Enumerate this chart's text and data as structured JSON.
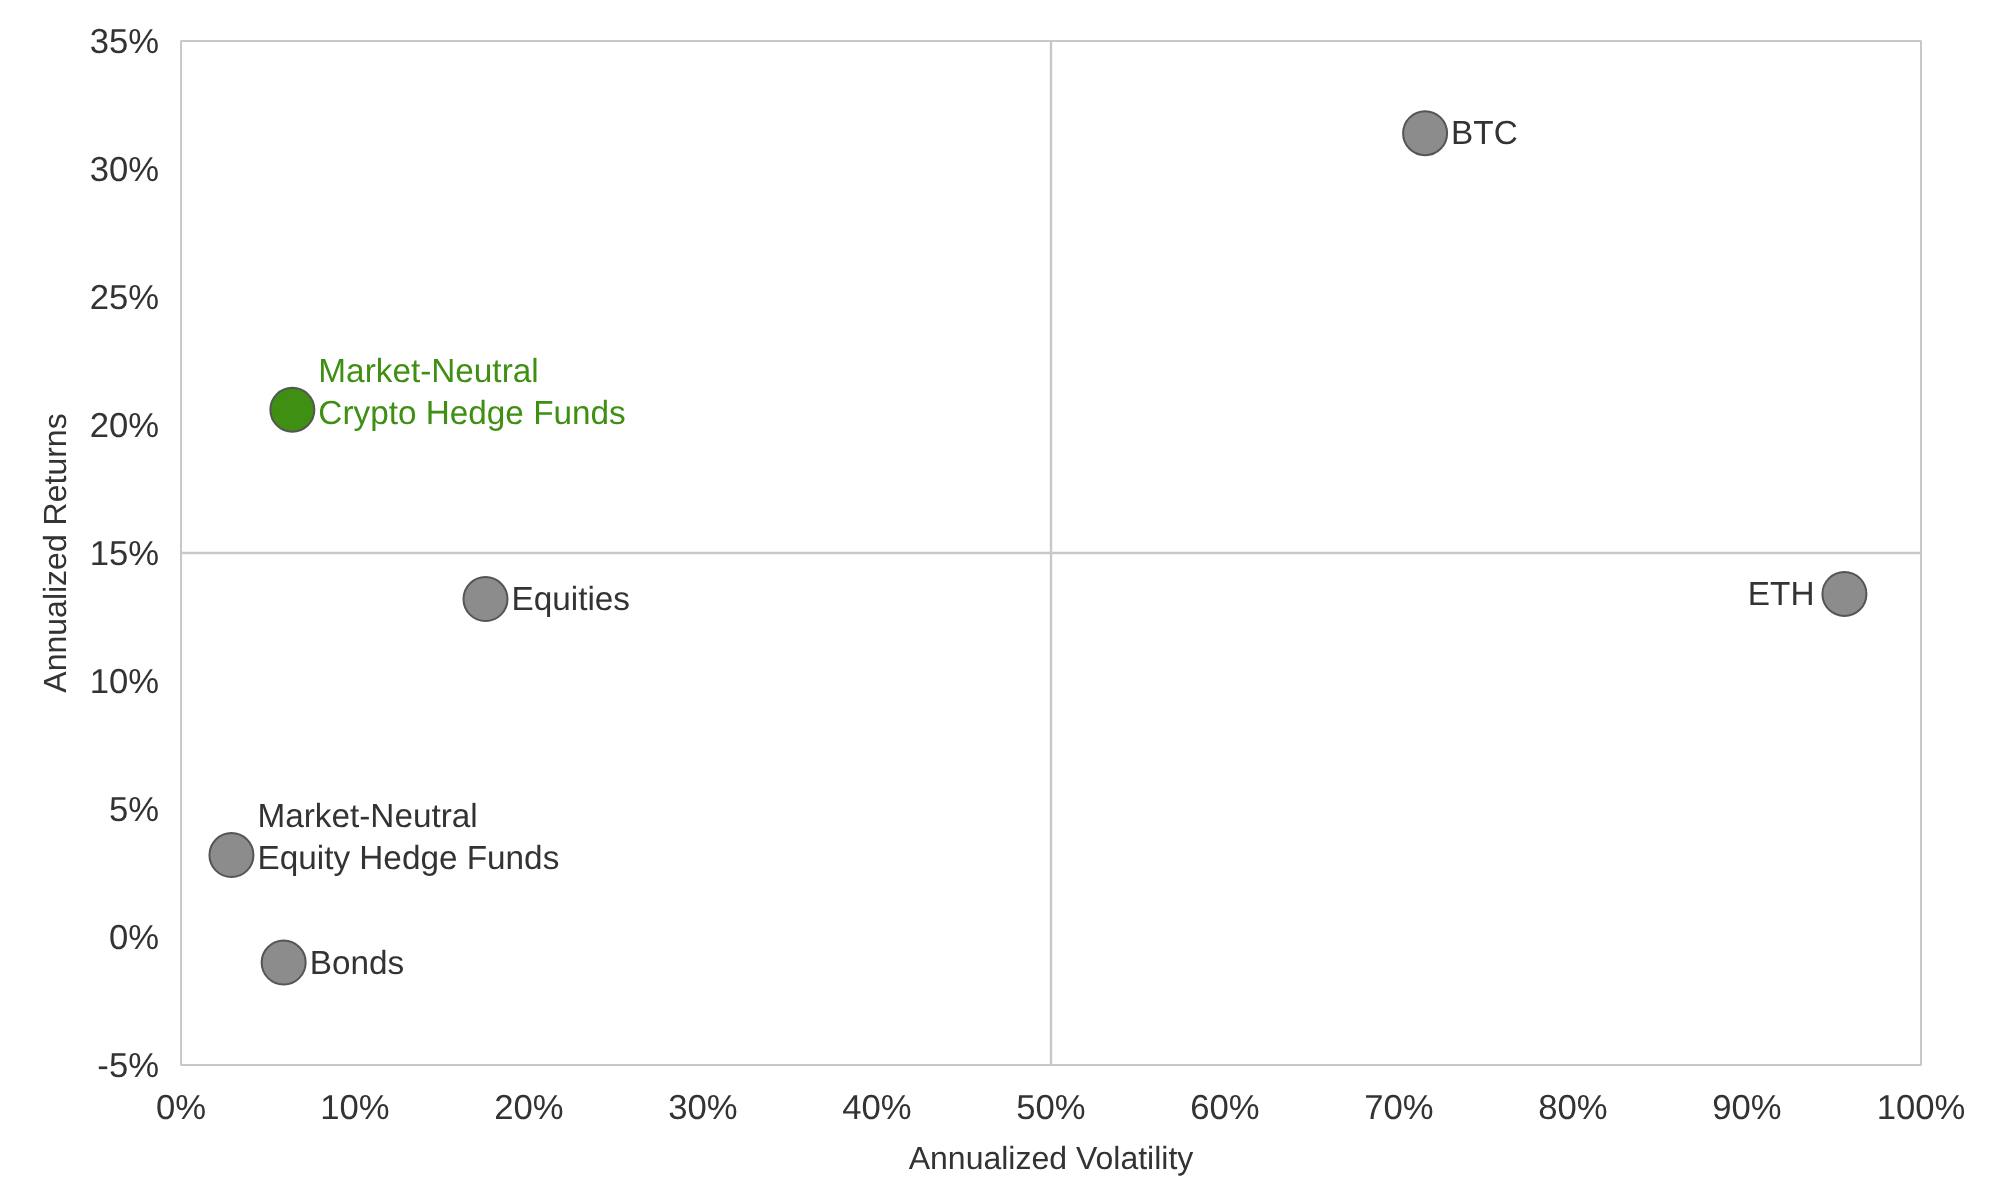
{
  "chart_data": {
    "type": "scatter",
    "xlabel": "Annualized Volatility",
    "ylabel": "Annualized Returns",
    "marker": "circle",
    "grid": false,
    "legend": false,
    "xlim": [
      0,
      100
    ],
    "ylim": [
      -5,
      35
    ],
    "xticks": [
      {
        "value": 0,
        "label": "0%"
      },
      {
        "value": 10,
        "label": "10%"
      },
      {
        "value": 20,
        "label": "20%"
      },
      {
        "value": 30,
        "label": "30%"
      },
      {
        "value": 40,
        "label": "40%"
      },
      {
        "value": 50,
        "label": "50%"
      },
      {
        "value": 60,
        "label": "60%"
      },
      {
        "value": 70,
        "label": "70%"
      },
      {
        "value": 80,
        "label": "80%"
      },
      {
        "value": 90,
        "label": "90%"
      },
      {
        "value": 100,
        "label": "100%"
      }
    ],
    "yticks": [
      {
        "value": -5,
        "label": "-5%"
      },
      {
        "value": 0,
        "label": "0%"
      },
      {
        "value": 5,
        "label": "5%"
      },
      {
        "value": 10,
        "label": "10%"
      },
      {
        "value": 15,
        "label": "15%"
      },
      {
        "value": 20,
        "label": "20%"
      },
      {
        "value": 25,
        "label": "25%"
      },
      {
        "value": 30,
        "label": "30%"
      },
      {
        "value": 35,
        "label": "35%"
      }
    ],
    "ref_lines": [
      {
        "axis": "x",
        "value": 50,
        "color": "#c8c8c8"
      },
      {
        "axis": "y",
        "value": 15,
        "color": "#c8c8c8"
      }
    ],
    "series": [
      {
        "name": "BTC",
        "color": "#8c8c8c",
        "x": [
          71.5
        ],
        "values": [
          31.4
        ]
      },
      {
        "name": "ETH",
        "color": "#8c8c8c",
        "x": [
          95.6
        ],
        "values": [
          13.4
        ]
      },
      {
        "name": "Market-Neutral\nCrypto Hedge Funds",
        "color": "#3f8f12",
        "x": [
          6.4
        ],
        "values": [
          20.6
        ]
      },
      {
        "name": "Equities",
        "color": "#8c8c8c",
        "x": [
          17.5
        ],
        "values": [
          13.2
        ]
      },
      {
        "name": "Market-Neutral\nEquity Hedge Funds",
        "color": "#8c8c8c",
        "x": [
          2.9
        ],
        "values": [
          3.2
        ]
      },
      {
        "name": "Bonds",
        "color": "#8c8c8c",
        "x": [
          5.9
        ],
        "values": [
          -1.0
        ]
      }
    ]
  }
}
